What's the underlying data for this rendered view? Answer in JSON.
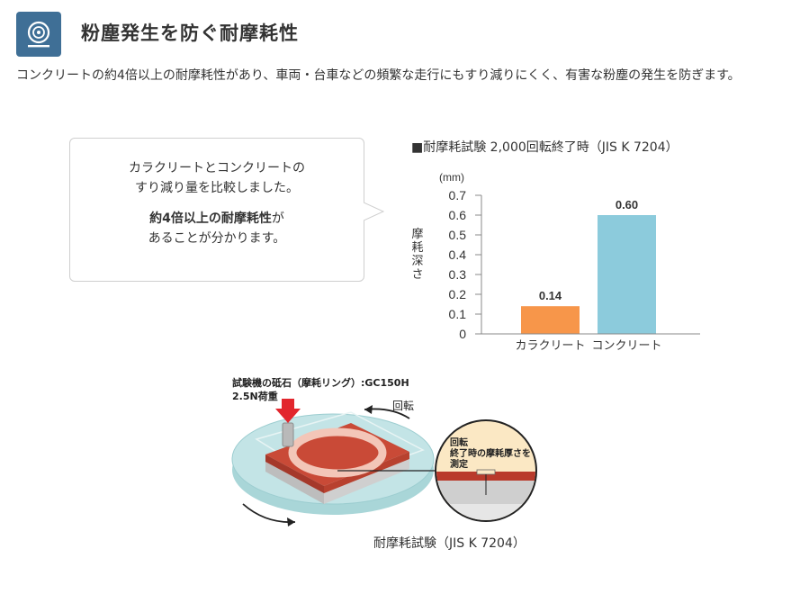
{
  "header": {
    "title": "粉塵発生を防ぐ耐摩耗性",
    "icon": "tire-icon"
  },
  "intro": {
    "text": "コンクリートの約4倍以上の耐摩耗性があり、車両・台車などの頻繁な走行にもすり減りにくく、有害な粉塵の発生を防ぎます。"
  },
  "bubble": {
    "line1": "カラクリートとコンクリートの",
    "line2": "すり減り量を比較しました。",
    "bold_text": "約4倍以上の耐摩耗性",
    "bold_suffix": "が",
    "line4": "あることが分かります。"
  },
  "chart_title": "■耐摩耗試験 2,000回転終了時（JIS K 7204）",
  "chart_data": {
    "type": "bar",
    "categories": [
      "カラクリート",
      "コンクリート"
    ],
    "values": [
      0.14,
      0.6
    ],
    "value_labels": [
      "0.14",
      "0.60"
    ],
    "title": "■耐摩耗試験 2,000回転終了時（JIS K 7204）",
    "xlabel": "",
    "ylabel": "摩耗深さ",
    "unit": "(mm)",
    "ylim": [
      0,
      0.7
    ],
    "yticks": [
      "0",
      "0.1",
      "0.2",
      "0.3",
      "0.4",
      "0.5",
      "0.6",
      "0.7"
    ],
    "colors": [
      "#f7964a",
      "#8ccbdc"
    ],
    "grid": false
  },
  "diagram": {
    "label_stone": "試験機の砥石（摩耗リング）:GC150H",
    "label_load": "2.5N荷重",
    "label_rotation": "回転",
    "label_measure_1": "回転",
    "label_measure_2": "終了時の摩耗厚さを",
    "label_measure_3": "測定",
    "caption": "耐摩耗試験（JIS K 7204）",
    "colors": {
      "disc": "#c3e4e6",
      "sample": "#d14e3c",
      "arrow": "#e2262d",
      "magnifier": "#fbe8c4"
    }
  }
}
